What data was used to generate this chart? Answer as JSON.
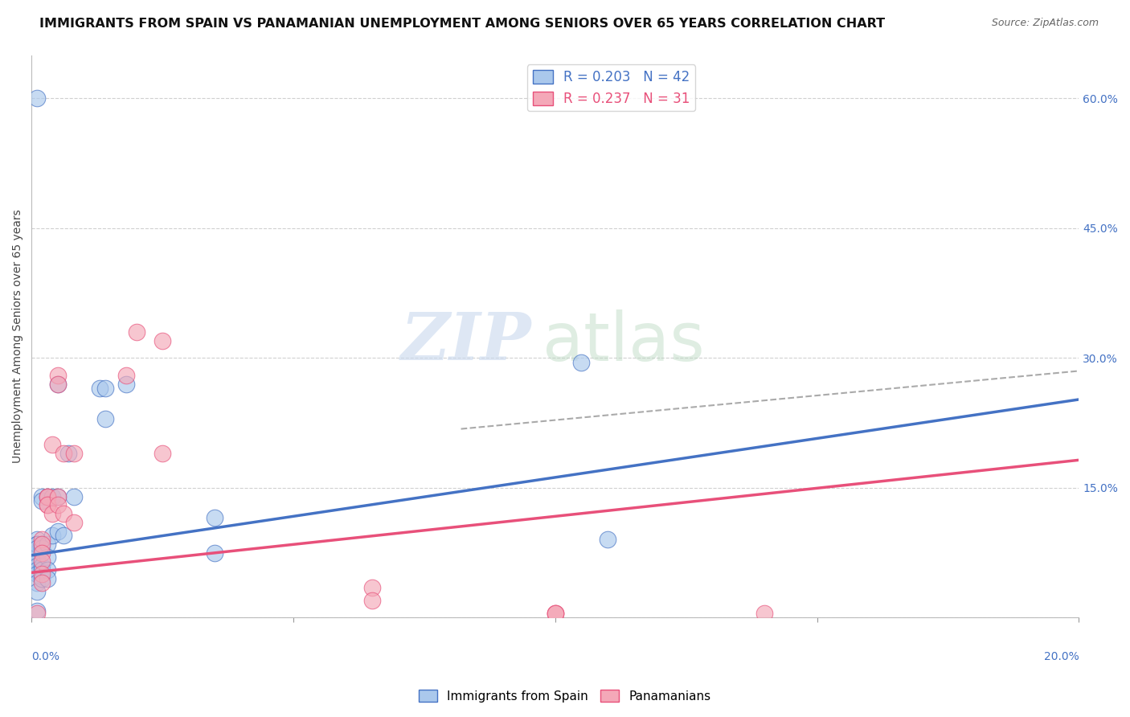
{
  "title": "IMMIGRANTS FROM SPAIN VS PANAMANIAN UNEMPLOYMENT AMONG SENIORS OVER 65 YEARS CORRELATION CHART",
  "source": "Source: ZipAtlas.com",
  "ylabel": "Unemployment Among Seniors over 65 years",
  "xlim": [
    0.0,
    0.2
  ],
  "ylim": [
    0.0,
    0.65
  ],
  "blue_scatter_x": [
    0.001,
    0.001,
    0.001,
    0.001,
    0.001,
    0.001,
    0.001,
    0.001,
    0.001,
    0.001,
    0.001,
    0.001,
    0.002,
    0.002,
    0.002,
    0.002,
    0.002,
    0.002,
    0.002,
    0.003,
    0.003,
    0.003,
    0.003,
    0.003,
    0.004,
    0.004,
    0.005,
    0.005,
    0.005,
    0.006,
    0.007,
    0.008,
    0.013,
    0.014,
    0.014,
    0.018,
    0.035,
    0.035,
    0.105,
    0.11,
    0.001,
    0.001
  ],
  "blue_scatter_y": [
    0.09,
    0.085,
    0.075,
    0.07,
    0.065,
    0.06,
    0.055,
    0.05,
    0.04,
    0.03,
    0.085,
    0.08,
    0.14,
    0.135,
    0.085,
    0.08,
    0.06,
    0.055,
    0.045,
    0.14,
    0.085,
    0.07,
    0.055,
    0.045,
    0.14,
    0.095,
    0.27,
    0.14,
    0.1,
    0.095,
    0.19,
    0.14,
    0.265,
    0.265,
    0.23,
    0.27,
    0.115,
    0.075,
    0.295,
    0.09,
    0.008,
    0.6
  ],
  "pink_scatter_x": [
    0.001,
    0.002,
    0.002,
    0.002,
    0.002,
    0.002,
    0.002,
    0.003,
    0.003,
    0.003,
    0.003,
    0.004,
    0.004,
    0.005,
    0.005,
    0.005,
    0.005,
    0.006,
    0.006,
    0.008,
    0.008,
    0.018,
    0.02,
    0.025,
    0.025,
    0.065,
    0.065,
    0.1,
    0.1,
    0.1,
    0.14
  ],
  "pink_scatter_y": [
    0.005,
    0.09,
    0.085,
    0.075,
    0.065,
    0.05,
    0.04,
    0.14,
    0.13,
    0.14,
    0.13,
    0.2,
    0.12,
    0.28,
    0.27,
    0.14,
    0.13,
    0.19,
    0.12,
    0.19,
    0.11,
    0.28,
    0.33,
    0.32,
    0.19,
    0.035,
    0.02,
    0.005,
    0.005,
    0.005,
    0.005
  ],
  "blue_line_x0": 0.0,
  "blue_line_x1": 0.2,
  "blue_line_y0": 0.072,
  "blue_line_y1": 0.252,
  "pink_line_x0": 0.0,
  "pink_line_x1": 0.2,
  "pink_line_y0": 0.052,
  "pink_line_y1": 0.182,
  "dashed_line_x": [
    0.082,
    0.2
  ],
  "dashed_line_y": [
    0.218,
    0.285
  ],
  "bg_color": "#ffffff",
  "blue_color": "#aac8ec",
  "pink_color": "#f4a8b8",
  "blue_line_color": "#4472c4",
  "pink_line_color": "#e8507a",
  "dashed_color": "#aaaaaa",
  "right_axis_color": "#4472c4",
  "grid_color": "#d0d0d0",
  "title_fontsize": 11.5,
  "axis_label_fontsize": 10,
  "tick_fontsize": 10,
  "legend_r1": "R = 0.203",
  "legend_n1": "N = 42",
  "legend_r2": "R = 0.237",
  "legend_n2": "N = 31",
  "watermark_zip": "ZIP",
  "watermark_atlas": "atlas"
}
